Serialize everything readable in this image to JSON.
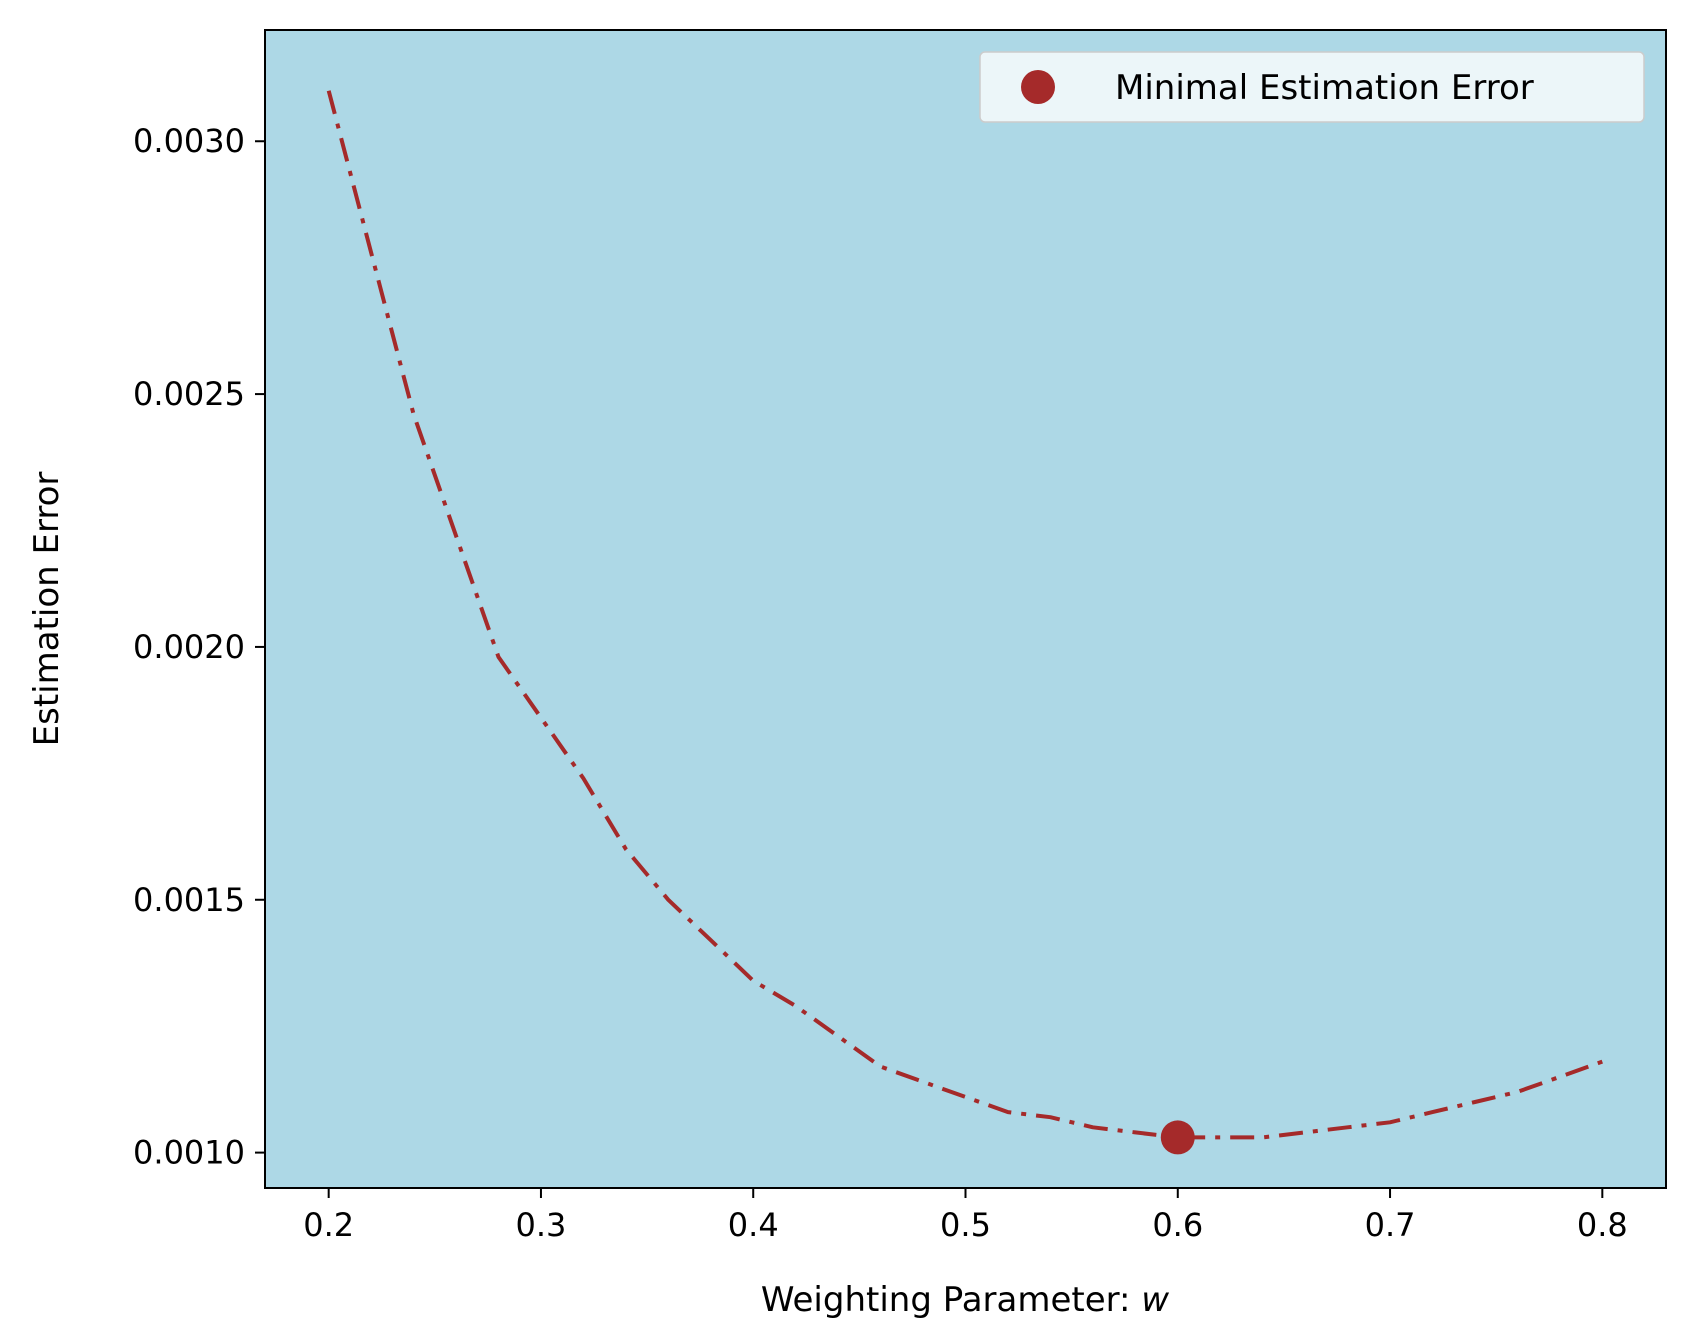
{
  "chart_data": {
    "type": "line",
    "xlabel": "Weighting Parameter: ",
    "xlabel_var": "w",
    "ylabel": "Estimation Error",
    "xlim": [
      0.17,
      0.83
    ],
    "ylim": [
      0.00093,
      0.00322
    ],
    "x_ticks": [
      0.2,
      0.3,
      0.4,
      0.5,
      0.6,
      0.7,
      0.8
    ],
    "x_tick_labels": [
      "0.2",
      "0.3",
      "0.4",
      "0.5",
      "0.6",
      "0.7",
      "0.8"
    ],
    "y_ticks": [
      0.001,
      0.0015,
      0.002,
      0.0025,
      0.003
    ],
    "y_tick_labels": [
      "0.0010",
      "0.0015",
      "0.0020",
      "0.0025",
      "0.0030"
    ],
    "grid": false,
    "legend_position": "top-right",
    "background_color": "#add8e6",
    "series": [
      {
        "line_style": "dash-dot",
        "color": "#a52a2a",
        "x": [
          0.2,
          0.22,
          0.24,
          0.26,
          0.28,
          0.3,
          0.32,
          0.34,
          0.36,
          0.38,
          0.4,
          0.42,
          0.44,
          0.46,
          0.48,
          0.5,
          0.52,
          0.54,
          0.56,
          0.58,
          0.6,
          0.62,
          0.64,
          0.66,
          0.68,
          0.7,
          0.72,
          0.74,
          0.76,
          0.78,
          0.8
        ],
        "y": [
          0.0031,
          0.00278,
          0.00246,
          0.00222,
          0.00198,
          0.00186,
          0.00174,
          0.0016,
          0.0015,
          0.00142,
          0.00134,
          0.00129,
          0.00123,
          0.00117,
          0.00114,
          0.00111,
          0.00108,
          0.00107,
          0.00105,
          0.00104,
          0.00103,
          0.00103,
          0.00103,
          0.00104,
          0.00105,
          0.00106,
          0.00108,
          0.0011,
          0.00112,
          0.00115,
          0.00118
        ]
      }
    ],
    "highlight_point": {
      "name": "Minimal Estimation Error",
      "x": 0.6,
      "y": 0.00103,
      "color": "#a52a2a"
    }
  }
}
